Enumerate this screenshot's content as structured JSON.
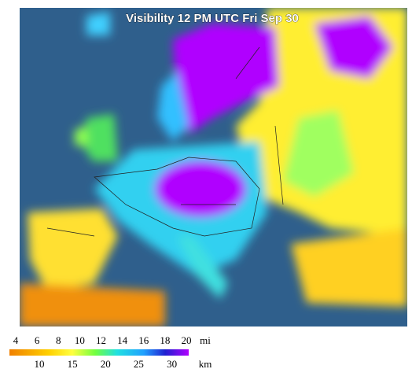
{
  "title": "Visibility 12 PM UTC Fri Sep 30",
  "legend": {
    "mi_ticks": [
      4,
      6,
      8,
      10,
      12,
      14,
      16,
      18,
      20
    ],
    "mi_unit": "mi",
    "km_ticks": [
      10,
      15,
      20,
      25,
      30
    ],
    "km_unit": "km"
  }
}
